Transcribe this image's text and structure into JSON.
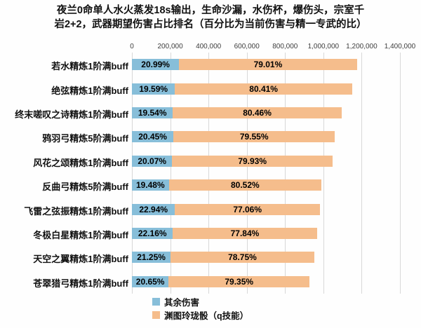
{
  "title": {
    "line1": "夜兰0命单人水火蒸发18s输出，生命沙漏，水伤杯，爆伤头，宗室千",
    "line2": "岩2+2，武器期望伤害占比排名（百分比为当前伤害与精一专武的比）"
  },
  "chart_data": {
    "type": "bar",
    "orientation": "horizontal",
    "stacked": true,
    "title": "夜兰0命单人水火蒸发18s输出，生命沙漏，水伤杯，爆伤头，宗室千岩2+2，武器期望伤害占比排名（百分比为当前伤害与精一专武的比）",
    "categories": [
      "若水精炼1阶满buff",
      "绝弦精炼1阶满buff",
      "终末嗟叹之诗精炼1阶满buff",
      "鸦羽弓精炼5阶满buff",
      "风花之颂精炼1阶满buff",
      "反曲弓精炼5阶满buff",
      "飞雷之弦振精炼1阶满buff",
      "冬极白星精炼1阶满buff",
      "天空之翼精炼1阶满buff",
      "苍翠猎弓精炼1阶满buff"
    ],
    "totals_estimated": [
      1175000,
      1150000,
      1095000,
      1060000,
      1048000,
      990000,
      982000,
      966000,
      952000,
      928000
    ],
    "series": [
      {
        "name": "其余伤害",
        "color": "#87bed9",
        "share_pct": [
          20.99,
          19.59,
          19.54,
          20.45,
          20.07,
          19.48,
          22.94,
          22.16,
          21.25,
          20.65
        ],
        "labels": [
          "20.99%",
          "19.59%",
          "19.54%",
          "20.45%",
          "20.07%",
          "19.48%",
          "22.94%",
          "22.16%",
          "21.25%",
          "20.65%"
        ]
      },
      {
        "name": "渊图玲珑骰（q技能）",
        "color": "#f5bd8c",
        "share_pct": [
          79.01,
          80.41,
          80.46,
          79.55,
          79.93,
          80.52,
          77.06,
          77.84,
          78.75,
          79.35
        ],
        "labels": [
          "79.01%",
          "80.41%",
          "80.46%",
          "79.55%",
          "79.93%",
          "80.52%",
          "77.06%",
          "77.84%",
          "78.75%",
          "79.35%"
        ]
      }
    ],
    "x_axis": {
      "position": "top",
      "min": 0,
      "max": 1400000,
      "tick_labels": [
        "0",
        "200,000",
        "400,000",
        "600,000",
        "800,000",
        "1,000,000",
        "1,200,000",
        "1,400,000"
      ]
    },
    "grid": true,
    "legend_position": "bottom",
    "colors": {
      "grid": "#d8d8d8",
      "text": "#111111",
      "background": "#ffffff"
    }
  },
  "legend": {
    "items": [
      {
        "label": "其余伤害",
        "color": "#87bed9"
      },
      {
        "label": "渊图玲珑骰（q技能）",
        "color": "#f5bd8c"
      }
    ]
  }
}
